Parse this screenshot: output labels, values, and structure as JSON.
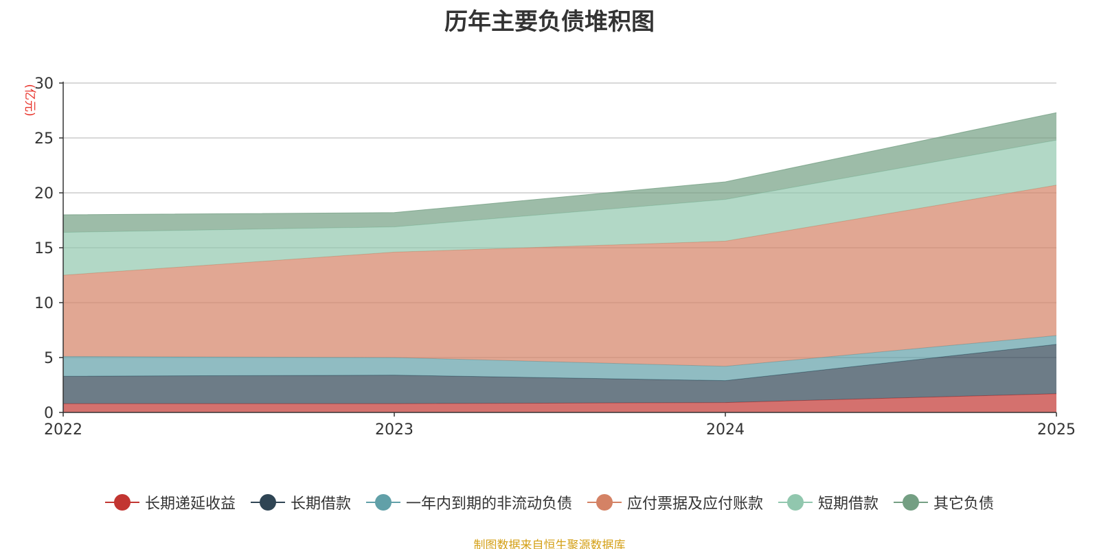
{
  "chart_data": {
    "type": "area",
    "stacked": true,
    "title": "历年主要负债堆积图",
    "ylabel": "(亿元)",
    "xlabel": "",
    "categories": [
      "2022",
      "2023",
      "2024",
      "2025"
    ],
    "ylim": [
      0,
      30
    ],
    "yticks": [
      0,
      5,
      10,
      15,
      20,
      25,
      30
    ],
    "grid": true,
    "legend_position": "bottom",
    "series": [
      {
        "name": "长期递延收益",
        "color": "#c23531",
        "values": [
          0.8,
          0.8,
          0.9,
          1.7
        ]
      },
      {
        "name": "长期借款",
        "color": "#2f4554",
        "values": [
          2.5,
          2.6,
          2.0,
          4.5
        ]
      },
      {
        "name": "一年内到期的非流动负债",
        "color": "#61a0a8",
        "values": [
          1.8,
          1.6,
          1.3,
          0.8
        ]
      },
      {
        "name": "应付票据及应付账款",
        "color": "#d48265",
        "values": [
          7.4,
          9.6,
          11.4,
          13.7
        ]
      },
      {
        "name": "短期借款",
        "color": "#91c7ae",
        "values": [
          3.9,
          2.3,
          3.8,
          4.1
        ]
      },
      {
        "name": "其它负债",
        "color": "#749f83",
        "values": [
          1.6,
          1.3,
          1.6,
          2.5
        ]
      }
    ]
  },
  "source": {
    "text": "制图数据来自恒生聚源数据库",
    "color": "#d4a017"
  },
  "colors": {
    "axis": "#333333",
    "grid": "#cccccc",
    "ylabel": "#e8332a"
  }
}
